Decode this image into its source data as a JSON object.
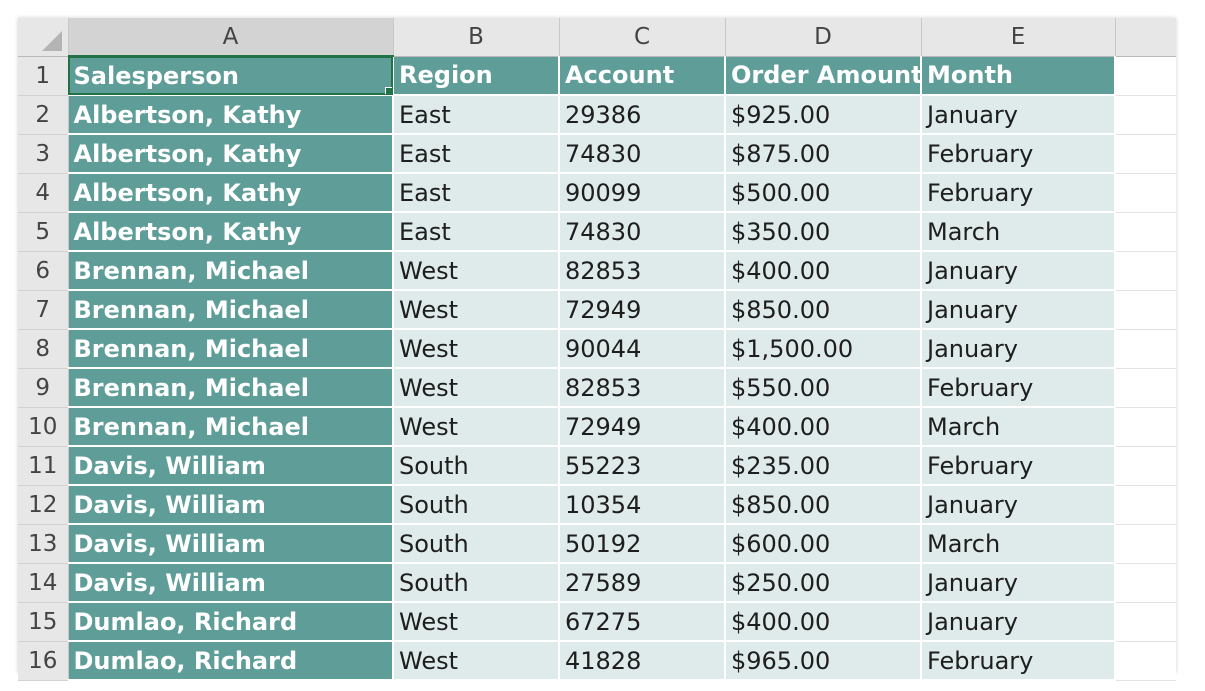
{
  "columns": [
    "A",
    "B",
    "C",
    "D",
    "E"
  ],
  "header": {
    "row_number": "1",
    "cells": [
      "Salesperson",
      "Region",
      "Account",
      "Order Amount",
      "Month"
    ]
  },
  "rows": [
    {
      "num": "2",
      "cells": [
        "Albertson, Kathy",
        "East",
        "29386",
        "$925.00",
        "January"
      ]
    },
    {
      "num": "3",
      "cells": [
        "Albertson, Kathy",
        "East",
        "74830",
        "$875.00",
        "February"
      ]
    },
    {
      "num": "4",
      "cells": [
        "Albertson, Kathy",
        "East",
        "90099",
        "$500.00",
        "February"
      ]
    },
    {
      "num": "5",
      "cells": [
        "Albertson, Kathy",
        "East",
        "74830",
        "$350.00",
        "March"
      ]
    },
    {
      "num": "6",
      "cells": [
        "Brennan, Michael",
        "West",
        "82853",
        "$400.00",
        "January"
      ]
    },
    {
      "num": "7",
      "cells": [
        "Brennan, Michael",
        "West",
        "72949",
        "$850.00",
        "January"
      ]
    },
    {
      "num": "8",
      "cells": [
        "Brennan, Michael",
        "West",
        "90044",
        "$1,500.00",
        "January"
      ]
    },
    {
      "num": "9",
      "cells": [
        "Brennan, Michael",
        "West",
        "82853",
        "$550.00",
        "February"
      ]
    },
    {
      "num": "10",
      "cells": [
        "Brennan, Michael",
        "West",
        "72949",
        "$400.00",
        "March"
      ]
    },
    {
      "num": "11",
      "cells": [
        "Davis, William",
        "South",
        "55223",
        "$235.00",
        "February"
      ]
    },
    {
      "num": "12",
      "cells": [
        "Davis, William",
        "South",
        "10354",
        "$850.00",
        "January"
      ]
    },
    {
      "num": "13",
      "cells": [
        "Davis, William",
        "South",
        "50192",
        "$600.00",
        "March"
      ]
    },
    {
      "num": "14",
      "cells": [
        "Davis, William",
        "South",
        "27589",
        "$250.00",
        "January"
      ]
    },
    {
      "num": "15",
      "cells": [
        "Dumlao, Richard",
        "West",
        "67275",
        "$400.00",
        "January"
      ]
    },
    {
      "num": "16",
      "cells": [
        "Dumlao, Richard",
        "West",
        "41828",
        "$965.00",
        "February"
      ]
    }
  ],
  "selected_cell": "A1",
  "colors": {
    "teal_fill": "#5f9e98",
    "light_fill": "#dfeaea",
    "selection": "#217346",
    "header_gray": "#e7e7e7"
  }
}
